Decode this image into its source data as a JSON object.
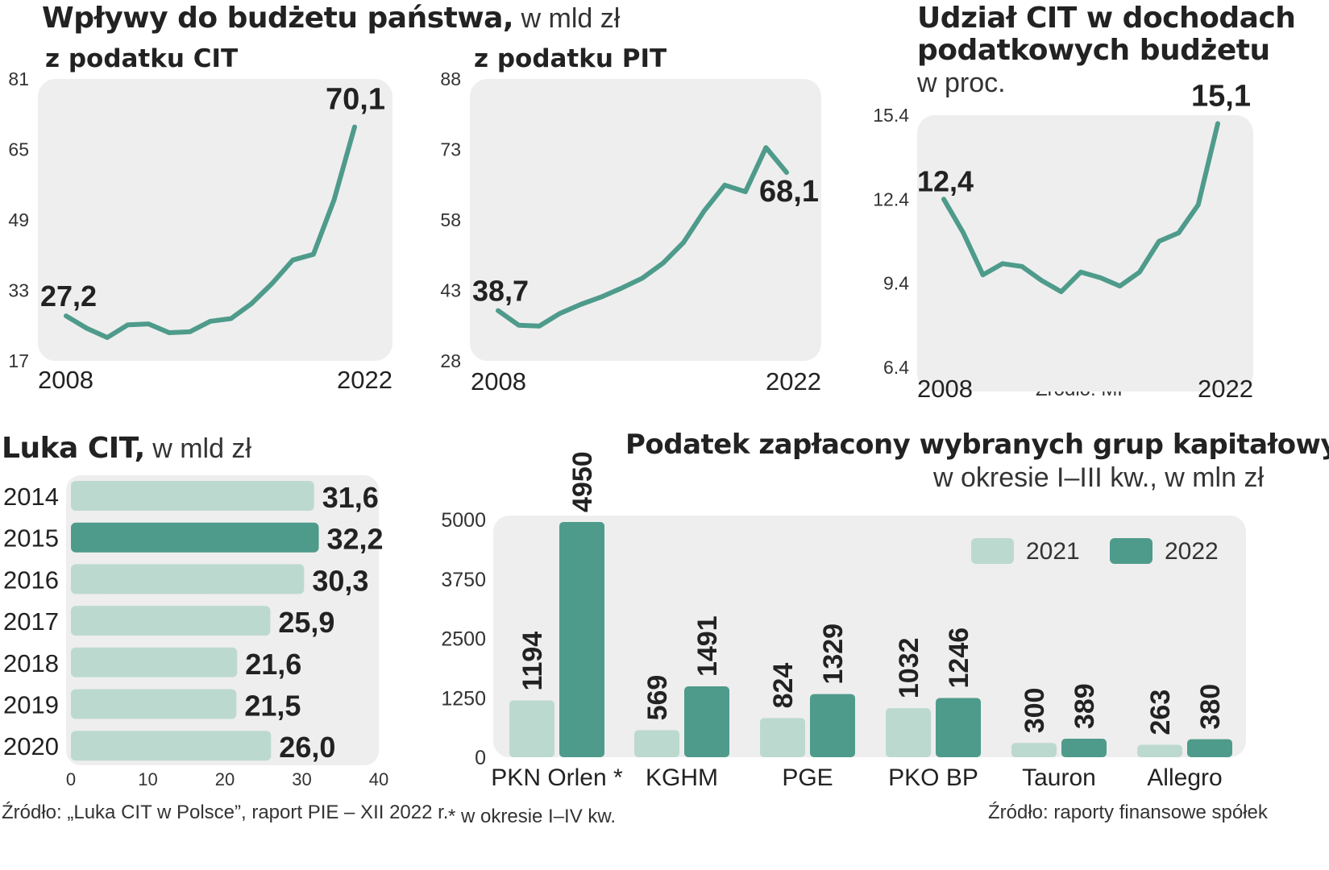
{
  "headers": {
    "main_title_bold": "Wpływy do budżetu państwa,",
    "main_title_light": " w mld zł",
    "cit_sub": "z podatku CIT",
    "pit_sub": "z podatku PIT",
    "share_title_line1": "Udział CIT w dochodach",
    "share_title_line2": "podatkowych budżetu",
    "share_title_line3": "w proc.",
    "gap_title_bold": "Luka CIT,",
    "gap_title_light": " w mld zł",
    "groups_title": "Podatek zapłacony wybranych grup kapitałowych",
    "groups_subtitle": "w okresie I–III kw., w mln zł"
  },
  "sources": {
    "mf": "Źródło: MF",
    "gap": "Źródło: „Luka CIT w Polsce”, raport PIE – XII 2022 r.",
    "note": "* w okresie I–IV kw.",
    "groups": "Źródło: raporty finansowe spółek"
  },
  "colors": {
    "line": "#4e9b8b",
    "light": "#bcd9d0",
    "dark": "#4e9b8b",
    "panel": "#eeeeee",
    "text": "#222222"
  },
  "chart_data": [
    {
      "id": "cit",
      "type": "line",
      "title": "z podatku CIT",
      "x": [
        2008,
        2009,
        2010,
        2011,
        2012,
        2013,
        2014,
        2015,
        2016,
        2017,
        2018,
        2019,
        2020,
        2021,
        2022
      ],
      "values": [
        27.2,
        24.4,
        22.3,
        25.2,
        25.4,
        23.4,
        23.6,
        26.0,
        26.6,
        30.0,
        34.6,
        39.9,
        41.2,
        53.5,
        70.1
      ],
      "yticks": [
        17,
        33,
        49,
        65,
        81
      ],
      "ylim": [
        17,
        81
      ],
      "xlabels": [
        "2008",
        "2022"
      ],
      "start_label": "27,2",
      "end_label": "70,1"
    },
    {
      "id": "pit",
      "type": "line",
      "title": "z podatku PIT",
      "x": [
        2008,
        2009,
        2010,
        2011,
        2012,
        2013,
        2014,
        2015,
        2016,
        2017,
        2018,
        2019,
        2020,
        2021,
        2022
      ],
      "values": [
        38.7,
        35.6,
        35.4,
        38.1,
        40.0,
        41.6,
        43.5,
        45.6,
        48.8,
        53.2,
        59.9,
        65.4,
        64.0,
        73.4,
        68.1
      ],
      "yticks": [
        28,
        43,
        58,
        73,
        88
      ],
      "ylim": [
        28,
        88
      ],
      "xlabels": [
        "2008",
        "2022"
      ],
      "start_label": "38,7",
      "end_label": "68,1"
    },
    {
      "id": "share",
      "type": "line",
      "title": "Udział CIT w dochodach podatkowych budżetu",
      "x": [
        2008,
        2009,
        2010,
        2011,
        2012,
        2013,
        2014,
        2015,
        2016,
        2017,
        2018,
        2019,
        2020,
        2021,
        2022
      ],
      "values": [
        12.4,
        11.2,
        9.7,
        10.1,
        10.0,
        9.5,
        9.1,
        9.8,
        9.6,
        9.3,
        9.8,
        10.9,
        11.2,
        12.2,
        15.1
      ],
      "yticks": [
        6.4,
        9.4,
        12.4,
        15.4
      ],
      "ytick_labels": [
        "6.4",
        "9.4",
        "12.4",
        "15.4"
      ],
      "ylim": [
        6.4,
        15.4
      ],
      "xlabels": [
        "2008",
        "2022"
      ],
      "start_label": "12,4",
      "end_label": "15,1"
    },
    {
      "id": "gap",
      "type": "bar",
      "orientation": "horizontal",
      "title": "Luka CIT, w mld zł",
      "categories": [
        "2014",
        "2015",
        "2016",
        "2017",
        "2018",
        "2019",
        "2020"
      ],
      "values": [
        31.6,
        32.2,
        30.3,
        25.9,
        21.6,
        21.5,
        26.0
      ],
      "value_labels": [
        "31,6",
        "32,2",
        "30,3",
        "25,9",
        "21,6",
        "21,5",
        "26,0"
      ],
      "highlight": "2015",
      "xticks": [
        0,
        10,
        20,
        30,
        40
      ],
      "xlim": [
        0,
        40
      ]
    },
    {
      "id": "groups",
      "type": "bar",
      "orientation": "vertical",
      "title": "Podatek zapłacony wybranych grup kapitałowych",
      "categories": [
        "PKN Orlen *",
        "KGHM",
        "PGE",
        "PKO BP",
        "Tauron",
        "Allegro"
      ],
      "series": [
        {
          "name": "2021",
          "values": [
            1194,
            569,
            824,
            1032,
            300,
            263
          ]
        },
        {
          "name": "2022",
          "values": [
            4950,
            1491,
            1329,
            1246,
            389,
            380
          ]
        }
      ],
      "yticks": [
        0,
        1250,
        2500,
        3750,
        5000
      ],
      "ylim": [
        0,
        5000
      ],
      "legend": "top-right"
    }
  ]
}
